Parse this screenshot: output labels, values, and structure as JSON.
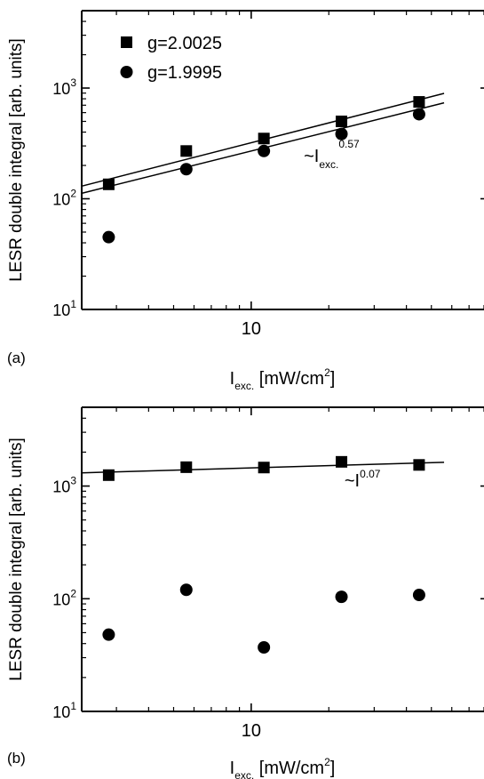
{
  "chart_data": [
    {
      "panel_label": "(a)",
      "type": "scatter",
      "xlabel": {
        "symbol": "I",
        "subscript": "exc.",
        "unit": "[mW/cm",
        "unit_sup": "2",
        "unit_close": "]"
      },
      "ylabel": "LESR double integral [arb. units]",
      "x_scale": "log",
      "y_scale": "log",
      "xlim": [
        2.2,
        80
      ],
      "ylim": [
        10,
        5000
      ],
      "x_ticks": [
        {
          "value": 10,
          "label": "10"
        }
      ],
      "y_ticks": [
        {
          "value": 10,
          "base": "10",
          "exp": "1"
        },
        {
          "value": 100,
          "base": "10",
          "exp": "2"
        },
        {
          "value": 1000,
          "base": "10",
          "exp": "3"
        }
      ],
      "grid": false,
      "legend": {
        "position": "top-left"
      },
      "series": [
        {
          "name": "g=2.0025",
          "marker": "square",
          "x": [
            2.8,
            5.6,
            11.2,
            22.4,
            44.8
          ],
          "y": [
            135,
            270,
            350,
            500,
            750
          ]
        },
        {
          "name": "g=1.9995",
          "marker": "circle",
          "x": [
            2.8,
            5.6,
            11.2,
            22.4,
            44.8
          ],
          "y": [
            45,
            185,
            270,
            385,
            580
          ]
        }
      ],
      "fit_lines": [
        {
          "x": [
            2.2,
            56
          ],
          "y": [
            130,
            895
          ]
        },
        {
          "x": [
            2.2,
            56
          ],
          "y": [
            112,
            735
          ]
        }
      ],
      "annotation": {
        "prefix": "~I",
        "subscript": "exc.",
        "exponent": "0.57",
        "x": 16,
        "y": 215
      }
    },
    {
      "panel_label": "(b)",
      "type": "scatter",
      "xlabel": {
        "symbol": "I",
        "subscript": "exc.",
        "unit": "[mW/cm",
        "unit_sup": "2",
        "unit_close": "]"
      },
      "ylabel": "LESR double integral [arb. units]",
      "x_scale": "log",
      "y_scale": "log",
      "xlim": [
        2.2,
        80
      ],
      "ylim": [
        10,
        5000
      ],
      "x_ticks": [
        {
          "value": 10,
          "label": "10"
        }
      ],
      "y_ticks": [
        {
          "value": 10,
          "base": "10",
          "exp": "1"
        },
        {
          "value": 100,
          "base": "10",
          "exp": "2"
        },
        {
          "value": 1000,
          "base": "10",
          "exp": "3"
        }
      ],
      "grid": false,
      "series": [
        {
          "marker": "square",
          "x": [
            2.8,
            5.6,
            11.2,
            22.4,
            44.8
          ],
          "y": [
            1250,
            1470,
            1460,
            1640,
            1540
          ]
        },
        {
          "marker": "circle",
          "x": [
            2.8,
            5.6,
            11.2,
            22.4,
            44.8
          ],
          "y": [
            48,
            120,
            37,
            104,
            108
          ]
        }
      ],
      "fit_lines": [
        {
          "x": [
            2.2,
            56
          ],
          "y": [
            1310,
            1625
          ]
        }
      ],
      "annotation": {
        "prefix": "~I",
        "subscript": "",
        "exponent": "0.07",
        "x": 23,
        "y": 990
      }
    }
  ]
}
